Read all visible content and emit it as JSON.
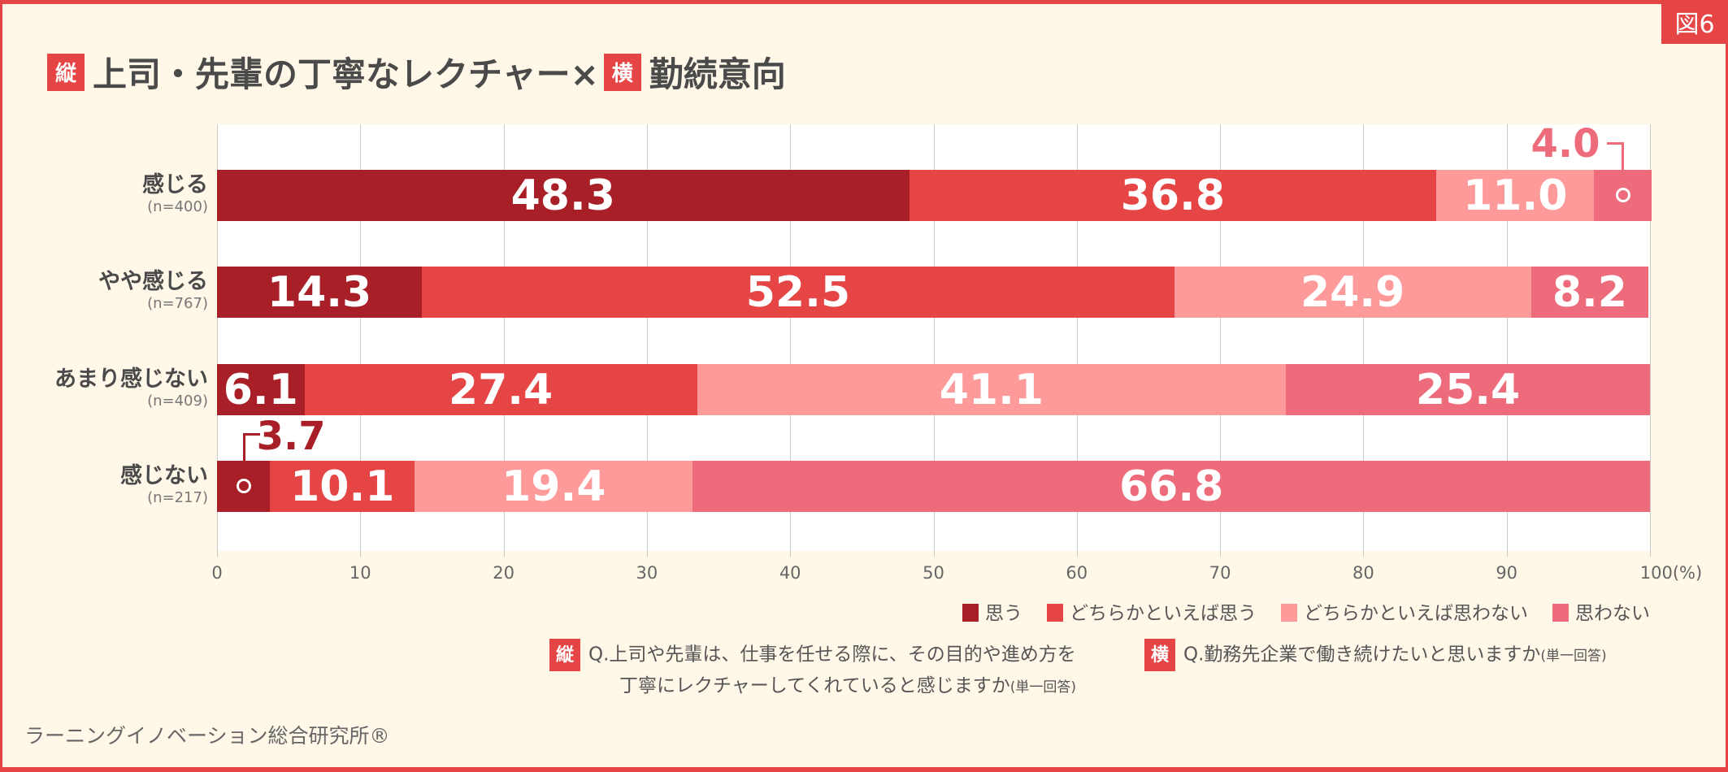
{
  "figure_label": "図6",
  "title": {
    "tag_vertical": "縦",
    "part1": "上司・先輩の丁寧なレクチャー×",
    "tag_horizontal": "横",
    "part2": "勤続意向"
  },
  "colors": {
    "omou": "#a91f27",
    "dochiraka_omou": "#e54545",
    "dochiraka_omowanai": "#ff9a9a",
    "omowanai": "#ee6b7b",
    "accent": "#e54545",
    "background": "#fff8e8"
  },
  "chart_data": {
    "type": "bar",
    "orientation": "horizontal-stacked-100",
    "categories": [
      {
        "label": "感じる",
        "n": "(n=400)"
      },
      {
        "label": "やや感じる",
        "n": "(n=767)"
      },
      {
        "label": "あまり感じない",
        "n": "(n=409)"
      },
      {
        "label": "感じない",
        "n": "(n=217)"
      }
    ],
    "series": [
      {
        "name": "思う",
        "values": [
          48.3,
          14.3,
          6.1,
          3.7
        ]
      },
      {
        "name": "どちらかといえば思う",
        "values": [
          36.8,
          52.5,
          27.4,
          10.1
        ]
      },
      {
        "name": "どちらかといえば思わない",
        "values": [
          11.0,
          24.9,
          41.1,
          19.4
        ]
      },
      {
        "name": "思わない",
        "values": [
          4.0,
          8.2,
          25.4,
          66.8
        ]
      }
    ],
    "xlim": [
      0,
      100
    ],
    "xticks": [
      "0",
      "10",
      "20",
      "30",
      "40",
      "50",
      "60",
      "70",
      "80",
      "90",
      "100(%)"
    ],
    "grid": true,
    "legend": "bottom-right"
  },
  "questions": {
    "vertical": {
      "tag": "縦",
      "line1": "Q.上司や先輩は、仕事を任せる際に、その目的や進め方を",
      "line2": "丁寧にレクチャーしてくれていると感じますか",
      "note": "(単一回答)"
    },
    "horizontal": {
      "tag": "横",
      "line1": "Q.勤務先企業で働き続けたいと思いますか",
      "note": "(単一回答)"
    }
  },
  "footer": "ラーニングイノベーション総合研究所®"
}
